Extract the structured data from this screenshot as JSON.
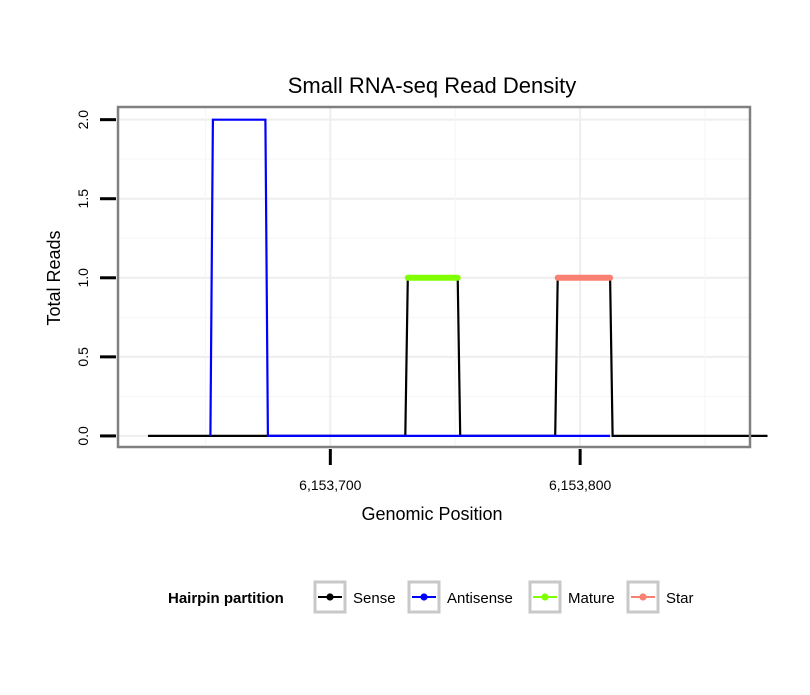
{
  "chart_data": {
    "type": "line",
    "title": "Small RNA-seq Read Density",
    "xlabel": "Genomic Position",
    "ylabel": "Total Reads",
    "xlim": [
      6153615,
      6153868
    ],
    "ylim": [
      -0.07,
      2.08
    ],
    "x_ticks": [
      6153700,
      6153800
    ],
    "x_tick_labels": [
      "6,153,700",
      "6,153,800"
    ],
    "y_ticks": [
      0,
      0.5,
      1,
      1.5,
      2
    ],
    "y_tick_labels": [
      "0.0",
      "0.5",
      "1.0",
      "1.5",
      "2.0"
    ],
    "grid": true,
    "legend_position": "bottom",
    "legend_title": "Hairpin partition",
    "series": [
      {
        "name": "Sense",
        "color": "#000000",
        "x": [
          6153627,
          6153730,
          6153731,
          6153751,
          6153752,
          6153790,
          6153791,
          6153812,
          6153813,
          6153875
        ],
        "values": [
          0,
          0,
          1,
          1,
          0,
          0,
          1,
          1,
          0,
          0
        ]
      },
      {
        "name": "Antisense",
        "color": "#0000ff",
        "x": [
          6153652,
          6153653,
          6153674,
          6153675,
          6153730,
          6153752,
          6153790,
          6153812
        ],
        "values": [
          0,
          2,
          2,
          0,
          0,
          0,
          0,
          0
        ]
      },
      {
        "name": "Mature",
        "color": "#7fff00",
        "x": [
          6153731,
          6153751
        ],
        "values": [
          1,
          1
        ]
      },
      {
        "name": "Star",
        "color": "#fa8072",
        "x": [
          6153791,
          6153812
        ],
        "values": [
          1,
          1
        ]
      }
    ]
  }
}
